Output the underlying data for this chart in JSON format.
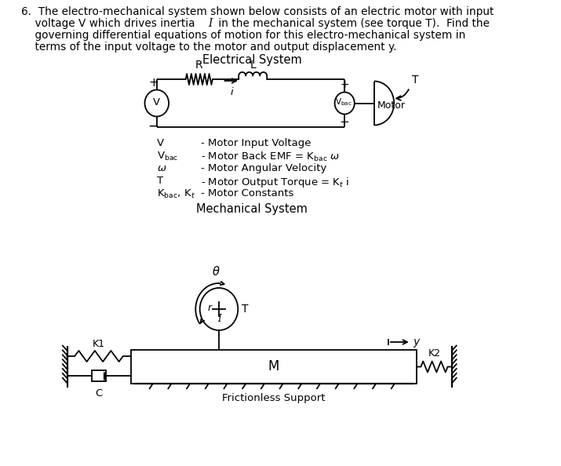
{
  "bg_color": "#ffffff",
  "line_color": "#000000",
  "elec_title": "Electrical System",
  "mech_title": "Mechanical System",
  "frictionless_label": "Frictionless Support",
  "question_line1": "6.  The electro-mechanical system shown below consists of an electric motor with input",
  "question_line2": "    voltage V which drives inertia Ӏ in the mechanical system (see torque T).  Find the",
  "question_line3": "    governing differential equations of motion for this electro-mechanical system in",
  "question_line4": "    terms of the input voltage to the motor and output displacement y."
}
